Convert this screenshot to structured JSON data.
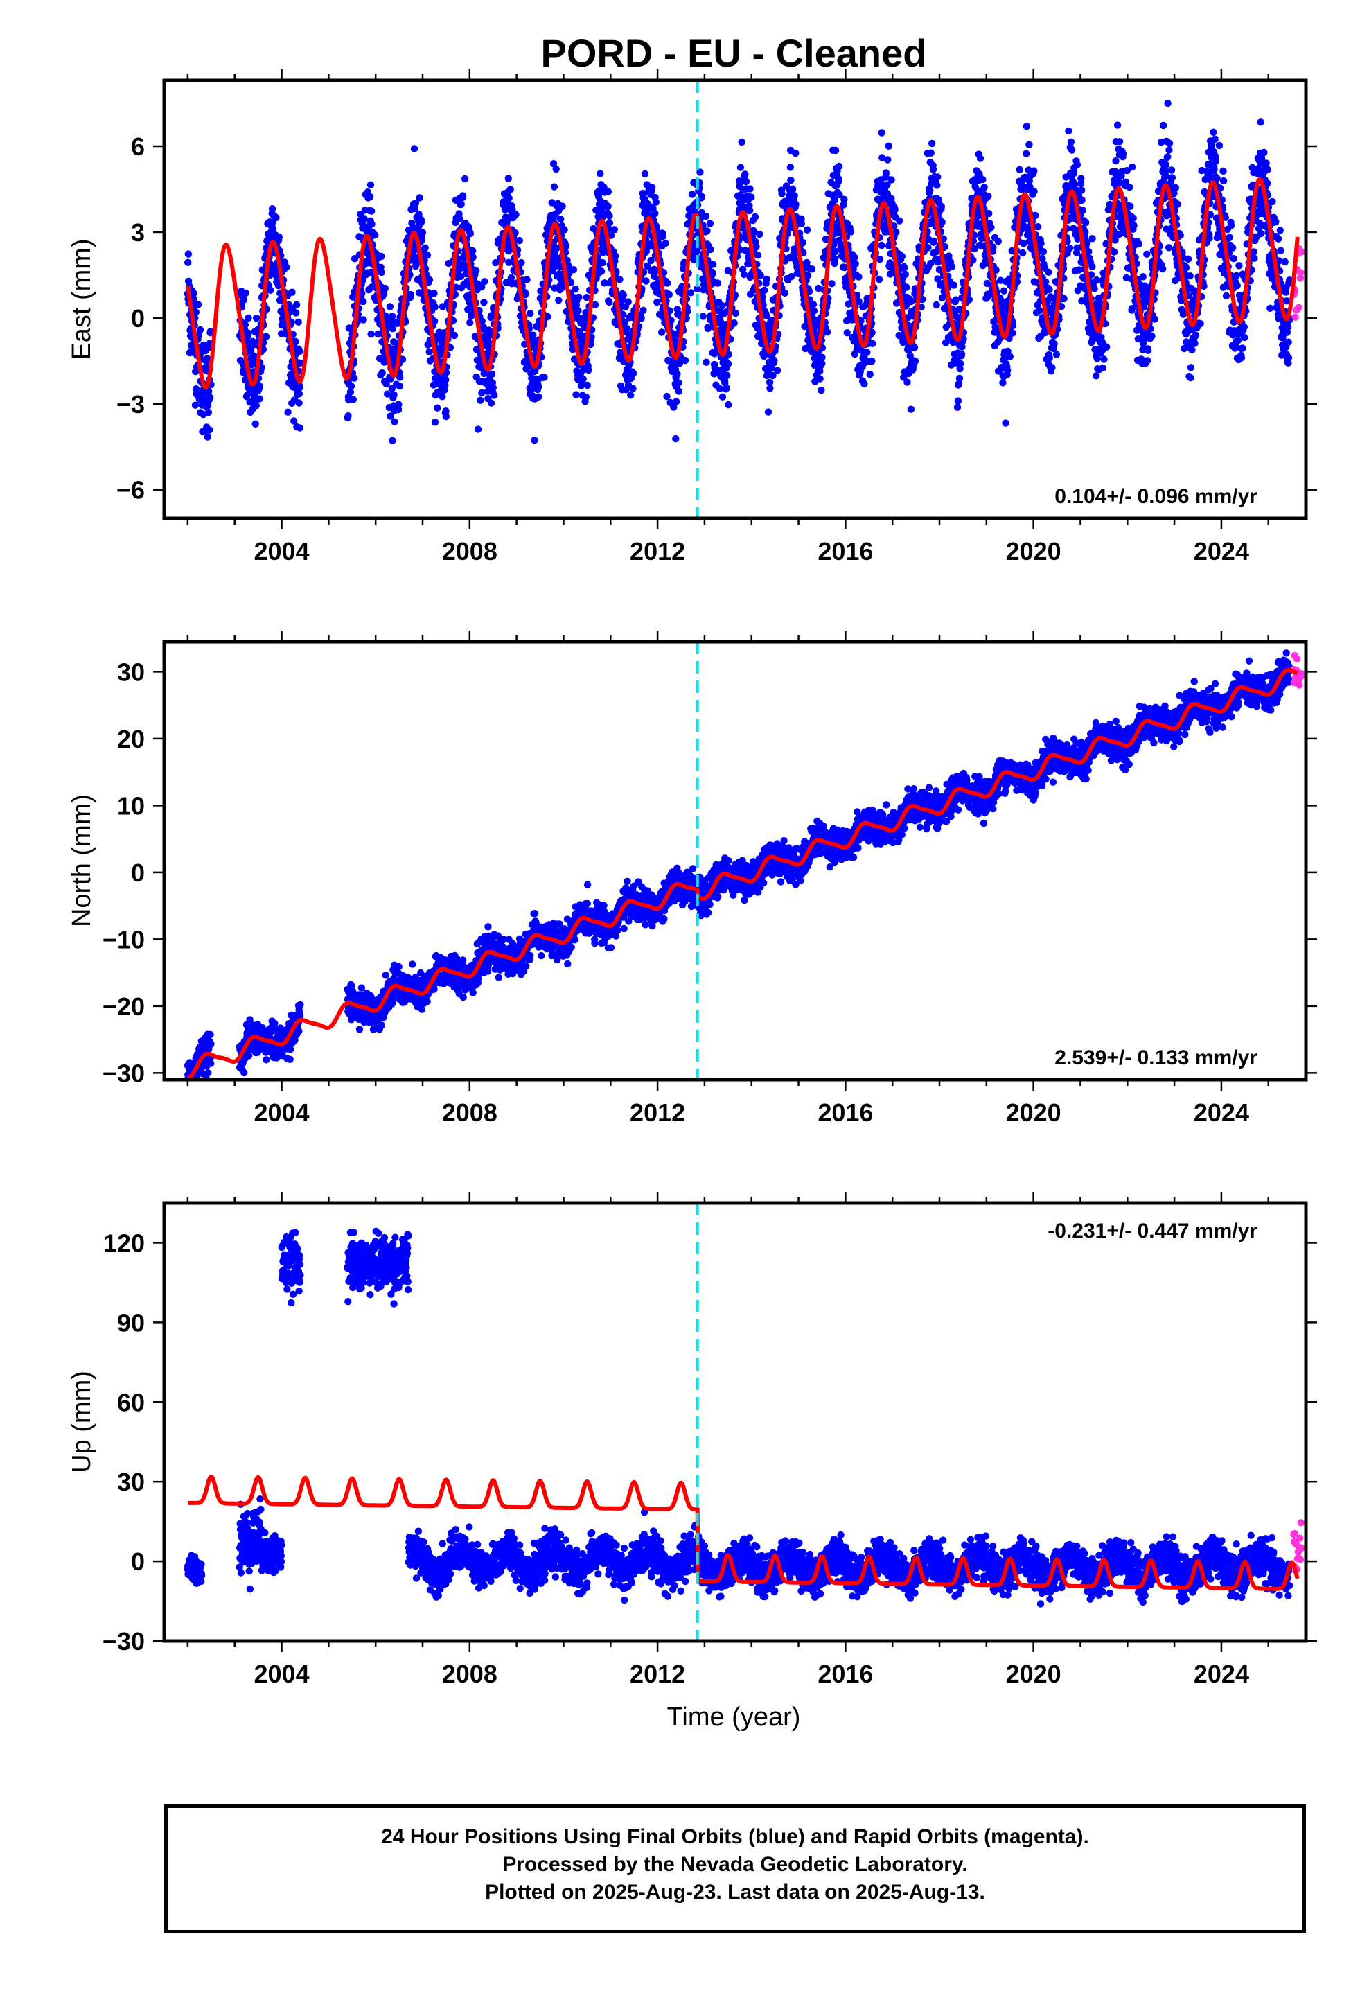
{
  "title": "PORD  - EU - Cleaned",
  "x_axis_label": "Time (year)",
  "footer": {
    "line1": "24 Hour Positions Using Final Orbits (blue) and Rapid Orbits (magenta).",
    "line2": "Processed by the Nevada Geodetic Laboratory.",
    "line3": "Plotted on 2025-Aug-23. Last data on 2025-Aug-13."
  },
  "colors": {
    "final": "#0000ff",
    "rapid": "#ff33dd",
    "model": "#ff0000",
    "equipment_change": "#00e5ee"
  },
  "chart_data": [
    {
      "type": "scatter",
      "component": "east",
      "ylabel": "East (mm)",
      "xlim": [
        2001.5,
        2025.8
      ],
      "ylim": [
        -7.0,
        8.3
      ],
      "xticks": [
        2004,
        2008,
        2012,
        2016,
        2020,
        2024
      ],
      "yticks": [
        -6,
        -3,
        0,
        3,
        6
      ],
      "ytick_labels": [
        "−6",
        "−3",
        "0",
        "3",
        "6"
      ],
      "rate_label": "0.104+/- 0.096 mm/yr",
      "rate_position": "bottom-right",
      "equipment_change_year": 2012.85,
      "model": {
        "offset": 0.0,
        "trend": 0.104,
        "amp_start": 2.4,
        "amp_end": 2.4,
        "seasonal_phase": 0.6,
        "semiannual_amp": 0.3,
        "noise_sd": 0.9,
        "breaks": [
          [
            2012.85,
            0.0
          ]
        ]
      },
      "series": [
        {
          "name": "Final Orbits",
          "start": 2002.0,
          "end": 2025.45
        },
        {
          "name": "Rapid Orbits",
          "start": 2025.45,
          "end": 2025.62
        }
      ],
      "gaps": [
        [
          2002.5,
          2003.1
        ],
        [
          2004.4,
          2005.4
        ]
      ],
      "outliers": []
    },
    {
      "type": "scatter",
      "component": "north",
      "ylabel": "North (mm)",
      "xlim": [
        2001.5,
        2025.8
      ],
      "ylim": [
        -31.0,
        34.5
      ],
      "xticks": [
        2004,
        2008,
        2012,
        2016,
        2020,
        2024
      ],
      "yticks": [
        -30,
        -20,
        -10,
        0,
        10,
        20,
        30
      ],
      "ytick_labels": [
        "−30",
        "−20",
        "−10",
        "0",
        "10",
        "20",
        "30"
      ],
      "rate_label": "2.539+/- 0.133 mm/yr",
      "rate_position": "bottom-right",
      "equipment_change_year": 2012.85,
      "model": {
        "offset": -29.5,
        "trend": 2.539,
        "amp_start": 1.2,
        "amp_end": 1.2,
        "seasonal_phase": 0.2,
        "semiannual_amp": 0.3,
        "noise_sd": 1.2,
        "breaks": [
          [
            2012.85,
            -1.0
          ]
        ]
      },
      "series": [
        {
          "name": "Final Orbits",
          "start": 2002.0,
          "end": 2025.45
        },
        {
          "name": "Rapid Orbits",
          "start": 2025.45,
          "end": 2025.62
        }
      ],
      "gaps": [
        [
          2002.5,
          2003.1
        ],
        [
          2004.4,
          2005.4
        ]
      ],
      "outliers": []
    },
    {
      "type": "scatter",
      "component": "up",
      "ylabel": "Up (mm)",
      "xlim": [
        2001.5,
        2025.8
      ],
      "ylim": [
        -30.0,
        135.0
      ],
      "xticks": [
        2004,
        2008,
        2012,
        2016,
        2020,
        2024
      ],
      "yticks": [
        -30,
        0,
        30,
        60,
        90,
        120
      ],
      "ytick_labels": [
        "−30",
        "0",
        "30",
        "60",
        "90",
        "120"
      ],
      "rate_label": "-0.231+/- 0.447 mm/yr",
      "rate_position": "top-right",
      "equipment_change_year": 2012.85,
      "model": {
        "offset": 25.0,
        "trend": -0.231,
        "amp_start": 6.0,
        "amp_end": 6.0,
        "seasonal_phase": 0.55,
        "semiannual_amp": 2.0,
        "noise_sd": 3.5,
        "breaks": [
          [
            2012.85,
            -27.0
          ]
        ]
      },
      "series": [
        {
          "name": "Final Orbits",
          "start": 2002.0,
          "end": 2025.45
        },
        {
          "name": "Rapid Orbits",
          "start": 2025.45,
          "end": 2025.62
        }
      ],
      "gaps": [
        [
          2002.5,
          2003.1
        ],
        [
          2004.4,
          2005.4
        ]
      ],
      "outliers": [
        {
          "start": 2004.0,
          "end": 2004.9,
          "center": 112,
          "spread": 8
        },
        {
          "start": 2005.4,
          "end": 2006.7,
          "center": 112,
          "spread": 8
        }
      ],
      "early_low": [
        {
          "start": 2002.0,
          "end": 2002.3,
          "center": -3,
          "spread": 4
        },
        {
          "start": 2003.1,
          "end": 2003.6,
          "center": 8,
          "spread": 10
        },
        {
          "start": 2003.6,
          "end": 2004.0,
          "center": 3,
          "spread": 6
        }
      ]
    }
  ]
}
